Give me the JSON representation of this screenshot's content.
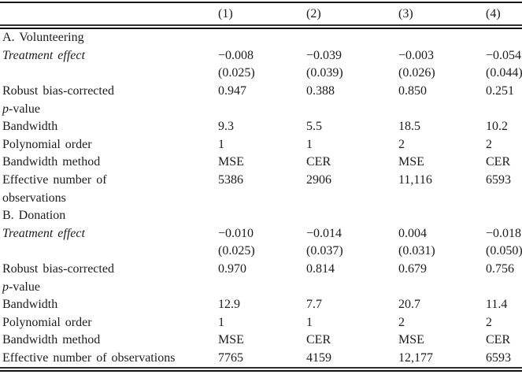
{
  "table": {
    "columns": [
      "(1)",
      "(2)",
      "(3)",
      "(4)"
    ],
    "panels": [
      {
        "title": "A. Volunteering",
        "rows": [
          {
            "em": "Treatment effect",
            "label": "",
            "values": [
              "−0.008",
              "−0.039",
              "−0.003",
              "−0.054"
            ]
          },
          {
            "em": "",
            "label": "",
            "values": [
              "(0.025)",
              "(0.039)",
              "(0.026)",
              "(0.044)"
            ]
          },
          {
            "em": "",
            "label": "Robust bias-corrected",
            "values": [
              "0.947",
              "0.388",
              "0.850",
              "0.251"
            ]
          },
          {
            "em": "p",
            "label": "-value",
            "values": [
              "",
              "",
              "",
              ""
            ]
          },
          {
            "em": "",
            "label": "Bandwidth",
            "values": [
              "9.3",
              "5.5",
              "18.5",
              "10.2"
            ]
          },
          {
            "em": "",
            "label": "Polynomial order",
            "values": [
              "1",
              "1",
              "2",
              "2"
            ]
          },
          {
            "em": "",
            "label": "Bandwidth method",
            "values": [
              "MSE",
              "CER",
              "MSE",
              "CER"
            ]
          },
          {
            "em": "",
            "label": "Effective number of",
            "values": [
              "5386",
              "2906",
              "11,116",
              "6593"
            ]
          },
          {
            "em": "",
            "label": "observations",
            "values": [
              "",
              "",
              "",
              ""
            ]
          }
        ]
      },
      {
        "title": "B. Donation",
        "rows": [
          {
            "em": "Treatment effect",
            "label": "",
            "values": [
              "−0.010",
              "−0.014",
              "0.004",
              "−0.018"
            ]
          },
          {
            "em": "",
            "label": "",
            "values": [
              "(0.025)",
              "(0.037)",
              "(0.031)",
              "(0.050)"
            ]
          },
          {
            "em": "",
            "label": "Robust bias-corrected",
            "values": [
              "0.970",
              "0.814",
              "0.679",
              "0.756"
            ]
          },
          {
            "em": "p",
            "label": "-value",
            "values": [
              "",
              "",
              "",
              ""
            ]
          },
          {
            "em": "",
            "label": "Bandwidth",
            "values": [
              "12.9",
              "7.7",
              "20.7",
              "11.4"
            ]
          },
          {
            "em": "",
            "label": "Polynomial order",
            "values": [
              "1",
              "1",
              "2",
              "2"
            ]
          },
          {
            "em": "",
            "label": "Bandwidth method",
            "values": [
              "MSE",
              "CER",
              "MSE",
              "CER"
            ]
          },
          {
            "em": "",
            "label": "Effective number of observations",
            "values": [
              "7765",
              "4159",
              "12,177",
              "6593"
            ]
          }
        ]
      }
    ]
  },
  "colors": {
    "text": "#1c1c1c",
    "rule": "#101010",
    "background": "#ffffff"
  }
}
